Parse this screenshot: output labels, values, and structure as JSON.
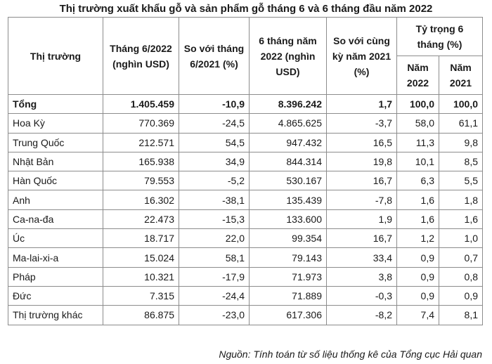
{
  "title": "Thị trường xuất khẩu gỗ và sản phẩm gỗ tháng 6 và 6 tháng đầu năm 2022",
  "headers": {
    "market": "Thị trường",
    "june": "Tháng 6/2022 (nghìn USD)",
    "vs_june": "So với tháng 6/2021 (%)",
    "six_months": "6 tháng năm 2022 (nghìn USD)",
    "vs_period": "So với cùng kỳ năm 2021 (%)",
    "share": "Tỷ trọng 6 tháng (%)",
    "year2022": "Năm 2022",
    "year2021": "Năm 2021"
  },
  "rows": [
    {
      "market": "Tổng",
      "june": "1.405.459",
      "vs_june": "-10,9",
      "six_months": "8.396.242",
      "vs_period": "1,7",
      "s2022": "100,0",
      "s2021": "100,0"
    },
    {
      "market": "Hoa Kỳ",
      "june": "770.369",
      "vs_june": "-24,5",
      "six_months": "4.865.625",
      "vs_period": "-3,7",
      "s2022": "58,0",
      "s2021": "61,1"
    },
    {
      "market": "Trung Quốc",
      "june": "212.571",
      "vs_june": "54,5",
      "six_months": "947.432",
      "vs_period": "16,5",
      "s2022": "11,3",
      "s2021": "9,8"
    },
    {
      "market": "Nhật Bản",
      "june": "165.938",
      "vs_june": "34,9",
      "six_months": "844.314",
      "vs_period": "19,8",
      "s2022": "10,1",
      "s2021": "8,5"
    },
    {
      "market": "Hàn Quốc",
      "june": "79.553",
      "vs_june": "-5,2",
      "six_months": "530.167",
      "vs_period": "16,7",
      "s2022": "6,3",
      "s2021": "5,5"
    },
    {
      "market": "Anh",
      "june": "16.302",
      "vs_june": "-38,1",
      "six_months": "135.439",
      "vs_period": "-7,8",
      "s2022": "1,6",
      "s2021": "1,8"
    },
    {
      "market": "Ca-na-đa",
      "june": "22.473",
      "vs_june": "-15,3",
      "six_months": "133.600",
      "vs_period": "1,9",
      "s2022": "1,6",
      "s2021": "1,6"
    },
    {
      "market": "Úc",
      "june": "18.717",
      "vs_june": "22,0",
      "six_months": "99.354",
      "vs_period": "16,7",
      "s2022": "1,2",
      "s2021": "1,0"
    },
    {
      "market": "Ma-lai-xi-a",
      "june": "15.024",
      "vs_june": "58,1",
      "six_months": "79.143",
      "vs_period": "33,4",
      "s2022": "0,9",
      "s2021": "0,7"
    },
    {
      "market": "Pháp",
      "june": "10.321",
      "vs_june": "-17,9",
      "six_months": "71.973",
      "vs_period": "3,8",
      "s2022": "0,9",
      "s2021": "0,8"
    },
    {
      "market": "Đức",
      "june": "7.315",
      "vs_june": "-24,4",
      "six_months": "71.889",
      "vs_period": "-0,3",
      "s2022": "0,9",
      "s2021": "0,9"
    },
    {
      "market": "Thị trường khác",
      "june": "86.875",
      "vs_june": "-23,0",
      "six_months": "617.306",
      "vs_period": "-8,2",
      "s2022": "7,4",
      "s2021": "8,1"
    }
  ],
  "source": "Nguồn: Tính toán từ số liệu thống kê của Tổng cục Hải quan"
}
